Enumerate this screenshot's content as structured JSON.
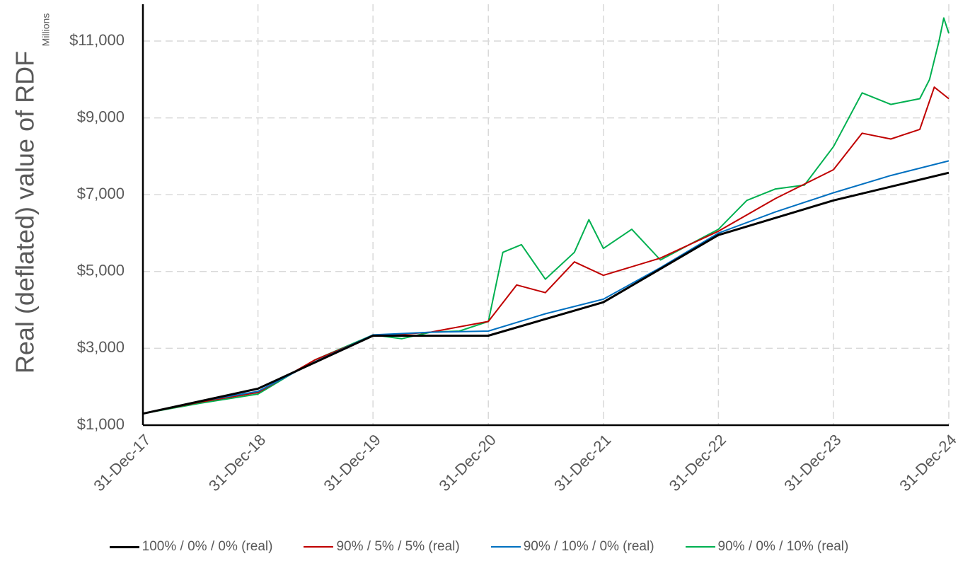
{
  "chart_data": {
    "type": "line",
    "title": "",
    "xlabel": "",
    "ylabel": "Real (deflated) value of RDF",
    "y_units": "Millions",
    "x_ticks": [
      "31-Dec-17",
      "31-Dec-18",
      "31-Dec-19",
      "31-Dec-20",
      "31-Dec-21",
      "31-Dec-22",
      "31-Dec-23",
      "31-Dec-24"
    ],
    "y_ticks": [
      "$1,000",
      "$3,000",
      "$5,000",
      "$7,000",
      "$9,000",
      "$11,000"
    ],
    "ylim": [
      1000,
      11900
    ],
    "grid": true,
    "legend_position": "bottom",
    "series": [
      {
        "name": "100% / 0% / 0% (real)",
        "color": "#000000",
        "x": [
          "31-Dec-17",
          "31-Dec-18",
          "31-Dec-19",
          "31-Dec-20",
          "31-Dec-21",
          "31-Dec-22",
          "31-Dec-23",
          "31-Dec-24"
        ],
        "values": [
          1300,
          1950,
          3330,
          3330,
          4200,
          5950,
          6850,
          7570
        ]
      },
      {
        "name": "90% / 5% / 5% (real)",
        "color": "#c00000",
        "x": [
          "31-Dec-17",
          "30-Jun-18",
          "31-Dec-18",
          "30-Jun-19",
          "31-Dec-19",
          "30-Jun-20",
          "31-Dec-20",
          "31-Mar-21",
          "30-Jun-21",
          "30-Sep-21",
          "31-Dec-21",
          "30-Jun-22",
          "31-Dec-22",
          "30-Jun-23",
          "31-Dec-23",
          "31-Mar-24",
          "30-Jun-24",
          "30-Sep-24",
          "15-Nov-24",
          "31-Dec-24"
        ],
        "values": [
          1300,
          1600,
          1850,
          2700,
          3320,
          3420,
          3700,
          4650,
          4450,
          5250,
          4900,
          5350,
          6050,
          6900,
          7650,
          8600,
          8450,
          8700,
          9800,
          9500
        ]
      },
      {
        "name": "90% / 10% / 0% (real)",
        "color": "#0070c0",
        "x": [
          "31-Dec-17",
          "30-Jun-18",
          "31-Dec-18",
          "30-Jun-19",
          "31-Dec-19",
          "30-Jun-20",
          "31-Dec-20",
          "30-Jun-21",
          "31-Dec-21",
          "30-Jun-22",
          "31-Dec-22",
          "30-Jun-23",
          "31-Dec-23",
          "30-Jun-24",
          "31-Dec-24"
        ],
        "values": [
          1300,
          1620,
          1880,
          2650,
          3350,
          3420,
          3450,
          3900,
          4280,
          5100,
          6000,
          6550,
          7050,
          7500,
          7880
        ]
      },
      {
        "name": "90% / 0% / 10% (real)",
        "color": "#00b050",
        "x": [
          "31-Dec-17",
          "30-Jun-18",
          "31-Dec-18",
          "30-Jun-19",
          "31-Dec-19",
          "31-Mar-20",
          "30-Jun-20",
          "30-Sep-20",
          "31-Dec-20",
          "15-Feb-21",
          "15-Apr-21",
          "30-Jun-21",
          "30-Sep-21",
          "15-Nov-21",
          "31-Dec-21",
          "31-Mar-22",
          "30-Jun-22",
          "30-Sep-22",
          "31-Dec-22",
          "31-Mar-23",
          "30-Jun-23",
          "30-Sep-23",
          "31-Dec-23",
          "31-Mar-24",
          "30-Jun-24",
          "30-Sep-24",
          "31-Oct-24",
          "30-Nov-24",
          "15-Dec-24",
          "31-Dec-24"
        ],
        "values": [
          1300,
          1570,
          1810,
          2700,
          3350,
          3250,
          3420,
          3450,
          3700,
          5500,
          5700,
          4800,
          5500,
          6350,
          5600,
          6100,
          5300,
          5700,
          6100,
          6850,
          7150,
          7250,
          8250,
          9650,
          9350,
          9500,
          10000,
          11000,
          11600,
          11200
        ]
      }
    ]
  }
}
